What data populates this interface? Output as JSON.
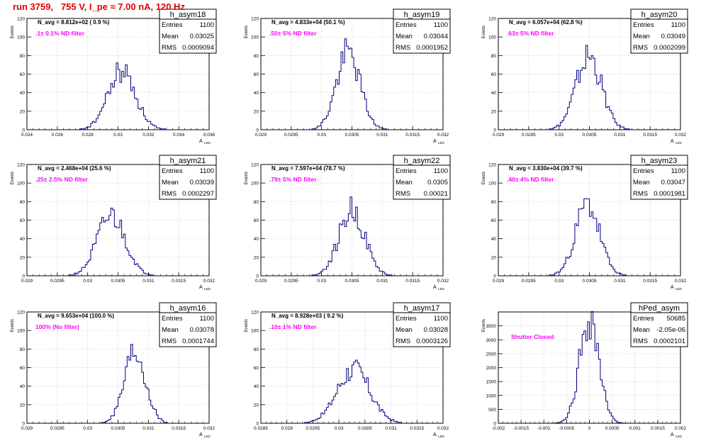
{
  "page_title": "run 3759,   755 V, I_pe ≈ 7.00 nA, 120 Hz",
  "colors": {
    "hist": "#000080",
    "title": "#e00000",
    "filter_label": "#ff00ff",
    "frame": "#000000",
    "grid": "#c0c0c0"
  },
  "y_axis_label": "Events",
  "x_axis_label": "A",
  "x_axis_subscript": "LED",
  "stat_labels": {
    "entries": "Entries",
    "mean": "Mean",
    "rms": "RMS"
  },
  "chart_data": [
    {
      "type": "histogram",
      "name": "h_asym18",
      "navg": "N_avg = 8.812e+02 ( 0.9 %)",
      "filter": ".1± 0.1% ND filter",
      "entries": "1100",
      "mean": "0.03025",
      "rms": "0.0009094",
      "xlim": [
        0.024,
        0.036
      ],
      "xticks": [
        "0.024",
        "0.026",
        "0.028",
        "0.03",
        "0.032",
        "0.034",
        "0.036"
      ],
      "ylim": [
        0,
        120
      ],
      "yticks": [
        "0",
        "20",
        "40",
        "60",
        "80",
        "100",
        "120"
      ],
      "peak": 63,
      "mu": 0.03025,
      "sigma": 0.0009094,
      "seed": 18
    },
    {
      "type": "histogram",
      "name": "h_asym19",
      "navg": "N_avg = 4.833e+04 (50.1 %)",
      "filter": ".50± 5% ND filter",
      "entries": "1100",
      "mean": "0.03044",
      "rms": "0.0001952",
      "xlim": [
        0.029,
        0.032
      ],
      "xticks": [
        "0.029",
        "0.0295",
        "0.03",
        "0.0305",
        "0.031",
        "0.0315",
        "0.032"
      ],
      "ylim": [
        0,
        120
      ],
      "yticks": [
        "0",
        "20",
        "40",
        "60",
        "80",
        "100",
        "120"
      ],
      "peak": 83,
      "mu": 0.03044,
      "sigma": 0.0001952,
      "seed": 19
    },
    {
      "type": "histogram",
      "name": "h_asym20",
      "navg": "N_avg = 6.057e+04 (62.8 %)",
      "filter": ".63± 5% ND filter",
      "entries": "1100",
      "mean": "0.03049",
      "rms": "0.0002099",
      "xlim": [
        0.029,
        0.032
      ],
      "xticks": [
        "0.029",
        "0.0295",
        "0.03",
        "0.0305",
        "0.031",
        "0.0315",
        "0.032"
      ],
      "ylim": [
        0,
        120
      ],
      "yticks": [
        "0",
        "20",
        "40",
        "60",
        "80",
        "100",
        "120"
      ],
      "peak": 79,
      "mu": 0.03049,
      "sigma": 0.0002099,
      "seed": 20
    },
    {
      "type": "histogram",
      "name": "h_asym21",
      "navg": "N_avg = 2.468e+04 (25.6 %)",
      "filter": ".25± 2.5% ND filter",
      "entries": "1100",
      "mean": "0.03039",
      "rms": "0.0002297",
      "xlim": [
        0.029,
        0.032
      ],
      "xticks": [
        "0.029",
        "0.0295",
        "0.03",
        "0.0305",
        "0.031",
        "0.0315",
        "0.032"
      ],
      "ylim": [
        0,
        120
      ],
      "yticks": [
        "0",
        "20",
        "40",
        "60",
        "80",
        "100",
        "120"
      ],
      "peak": 65,
      "mu": 0.03039,
      "sigma": 0.0002297,
      "seed": 21
    },
    {
      "type": "histogram",
      "name": "h_asym22",
      "navg": "N_avg = 7.597e+04 (78.7 %)",
      "filter": ".79± 5% ND filter",
      "entries": "1100",
      "mean": "0.0305",
      "rms": "0.00021",
      "xlim": [
        0.029,
        0.032
      ],
      "xticks": [
        "0.029",
        "0.0295",
        "0.03",
        "0.0305",
        "0.031",
        "0.0315",
        "0.032"
      ],
      "ylim": [
        0,
        120
      ],
      "yticks": [
        "0",
        "20",
        "40",
        "60",
        "80",
        "100",
        "120"
      ],
      "peak": 71,
      "mu": 0.0305,
      "sigma": 0.00021,
      "seed": 22
    },
    {
      "type": "histogram",
      "name": "h_asym23",
      "navg": "N_avg = 3.830e+04 (39.7 %)",
      "filter": ".40± 4% ND filter",
      "entries": "1100",
      "mean": "0.03047",
      "rms": "0.0001981",
      "xlim": [
        0.029,
        0.032
      ],
      "xticks": [
        "0.029",
        "0.0295",
        "0.03",
        "0.0305",
        "0.031",
        "0.0315",
        "0.032"
      ],
      "ylim": [
        0,
        120
      ],
      "yticks": [
        "0",
        "20",
        "40",
        "60",
        "80",
        "100",
        "120"
      ],
      "peak": 77,
      "mu": 0.03047,
      "sigma": 0.0001981,
      "seed": 23
    },
    {
      "type": "histogram",
      "name": "h_asym16",
      "navg": "N_avg = 9.653e+04 (100.0 %)",
      "filter": "100% (No filter)",
      "entries": "1100",
      "mean": "0.03078",
      "rms": "0.0001744",
      "xlim": [
        0.029,
        0.032
      ],
      "xticks": [
        "0.029",
        "0.0295",
        "0.03",
        "0.0305",
        "0.031",
        "0.0315",
        "0.032"
      ],
      "ylim": [
        0,
        120
      ],
      "yticks": [
        "0",
        "20",
        "40",
        "60",
        "80",
        "100",
        "120"
      ],
      "peak": 78,
      "mu": 0.03078,
      "sigma": 0.0001744,
      "seed": 16
    },
    {
      "type": "histogram",
      "name": "h_asym17",
      "navg": "N_avg = 8.928e+03 ( 9.2 %)",
      "filter": ".10± 1% ND filter",
      "entries": "1100",
      "mean": "0.03028",
      "rms": "0.0003126",
      "xlim": [
        0.0285,
        0.032
      ],
      "xticks": [
        "0.0285",
        "0.029",
        "0.0295",
        "0.03",
        "0.0305",
        "0.031",
        "0.0315",
        "0.032"
      ],
      "ylim": [
        0,
        120
      ],
      "yticks": [
        "0",
        "20",
        "40",
        "60",
        "80",
        "100",
        "120"
      ],
      "peak": 58,
      "mu": 0.03028,
      "sigma": 0.0003126,
      "seed": 17
    },
    {
      "type": "histogram",
      "name": "hPed_asym",
      "navg": "",
      "filter": "Shutter Closed",
      "entries": "50685",
      "mean": "-2.05e-06",
      "rms": "0.0002101",
      "xlim": [
        -0.002,
        0.002
      ],
      "xticks": [
        "-0.002",
        "-0.0015",
        "-0.001",
        "-0.0005",
        "0",
        "0.0005",
        "0.001",
        "0.0015",
        "0.002"
      ],
      "ylim": [
        0,
        4000
      ],
      "yticks": [
        "0",
        "500",
        "1000",
        "1500",
        "2000",
        "2500",
        "3000",
        "3500"
      ],
      "peak": 3820,
      "mu": -2.05e-06,
      "sigma": 0.0002101,
      "seed": 99
    }
  ]
}
